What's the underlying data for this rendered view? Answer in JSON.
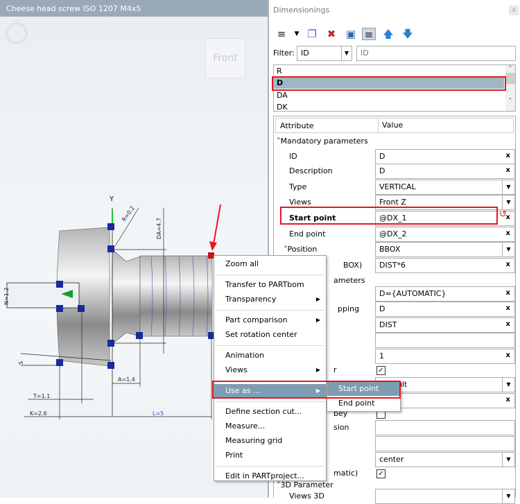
{
  "viewport": {
    "title": "Cheese head screw ISO 1207 M4x5",
    "view_cube_label": "Front",
    "dimensions": {
      "y_axis": "Y",
      "r": "R=0.2",
      "da": "DA=4.7",
      "n": "N=1.2",
      "s": "S",
      "a": "A=1.4",
      "t": "T=1.1",
      "k": "K=2.6",
      "l": "L=5"
    }
  },
  "panel": {
    "title": "Dimensionings",
    "close": "x",
    "toolbar": [
      "add-list-icon",
      "dropdown-icon",
      "copy-icon",
      "delete-icon",
      "save-icon",
      "list-view-icon",
      "arrow-up-icon",
      "arrow-down-icon"
    ],
    "filter": {
      "label": "Filter:",
      "field": "ID",
      "value": "ID"
    },
    "list": [
      "R",
      "D",
      "DA",
      "DK"
    ],
    "selected": "D",
    "table": {
      "headers": [
        "Attribute",
        "Value"
      ],
      "rows": [
        {
          "attr": "˅Mandatory parameters"
        },
        {
          "attr": "ID",
          "value": "D",
          "kind": "x"
        },
        {
          "attr": "Description",
          "value": "D",
          "kind": "x"
        },
        {
          "attr": "Type",
          "value": "VERTICAL",
          "kind": "dd"
        },
        {
          "attr": "Views",
          "value": "Front Z",
          "kind": "dd"
        },
        {
          "attr": "Start point",
          "value": "@DX_1",
          "kind": "x"
        },
        {
          "attr": "End point",
          "value": "@DX_2",
          "kind": "x"
        },
        {
          "attr": "˅Position",
          "value": "BBOX",
          "kind": "dd"
        },
        {
          "attr": "BOX)",
          "value": "DIST*6",
          "kind": "x"
        },
        {
          "attr": "ameters"
        },
        {
          "attr": "",
          "value": "D={AUTOMATIC}",
          "kind": "x"
        },
        {
          "attr": "pping",
          "value": "D",
          "kind": "x"
        },
        {
          "attr": "",
          "value": "DIST",
          "kind": "x"
        },
        {
          "attr": "",
          "value": "",
          "kind": "empty"
        },
        {
          "attr": "",
          "value": "1",
          "kind": "x"
        },
        {
          "attr": "r",
          "value": "checked",
          "kind": "chk"
        },
        {
          "attr": "",
          "value": "Default",
          "kind": "dd"
        },
        {
          "attr": "",
          "value": "",
          "kind": "x"
        },
        {
          "attr": "bey",
          "value": "unchecked",
          "kind": "chk"
        },
        {
          "attr": "sion",
          "value": "",
          "kind": "empty"
        },
        {
          "attr": "",
          "value": "",
          "kind": "empty"
        },
        {
          "attr": "",
          "value": "center",
          "kind": "dd"
        },
        {
          "attr": "matic)",
          "value": "checked",
          "kind": "chk"
        },
        {
          "attr": "˅3D Parameter"
        },
        {
          "attr": "Views 3D",
          "value": "",
          "kind": "dd"
        }
      ]
    }
  },
  "context_menu": {
    "items": [
      {
        "label": "Zoom all"
      },
      {
        "sep": true
      },
      {
        "label": "Transfer to PARTbom"
      },
      {
        "label": "Transparency",
        "sub": true
      },
      {
        "sep": true
      },
      {
        "label": "Part comparison",
        "sub": true
      },
      {
        "label": "Set rotation center"
      },
      {
        "sep": true
      },
      {
        "label": "Animation"
      },
      {
        "label": "Views",
        "sub": true
      },
      {
        "sep": true
      },
      {
        "label": "Use as ...",
        "sub": true,
        "highlighted": true
      },
      {
        "sep": true
      },
      {
        "label": "Define section cut..."
      },
      {
        "label": "Measure..."
      },
      {
        "label": "Measuring grid"
      },
      {
        "label": "Print"
      },
      {
        "sep": true
      },
      {
        "label": "Edit in PARTproject..."
      }
    ],
    "submenu": [
      {
        "label": "Start point",
        "highlighted": true
      },
      {
        "label": "End point"
      }
    ]
  },
  "colors": {
    "highlight": "#7e9db3",
    "callout": "#e8141d",
    "selection": "#9fb6c5"
  }
}
